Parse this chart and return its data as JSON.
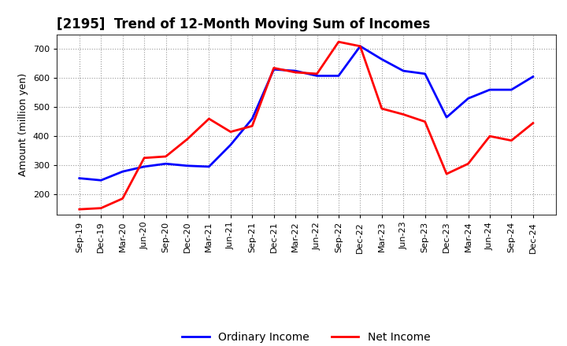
{
  "title": "[2195]  Trend of 12-Month Moving Sum of Incomes",
  "ylabel": "Amount (million yen)",
  "x_labels": [
    "Sep-19",
    "Dec-19",
    "Mar-20",
    "Jun-20",
    "Sep-20",
    "Dec-20",
    "Mar-21",
    "Jun-21",
    "Sep-21",
    "Dec-21",
    "Mar-22",
    "Jun-22",
    "Sep-22",
    "Dec-22",
    "Mar-23",
    "Jun-23",
    "Sep-23",
    "Dec-23",
    "Mar-24",
    "Jun-24",
    "Sep-24",
    "Dec-24"
  ],
  "ordinary_income": [
    255,
    248,
    278,
    295,
    305,
    298,
    295,
    370,
    460,
    630,
    625,
    608,
    608,
    710,
    665,
    625,
    615,
    465,
    530,
    560,
    560,
    605
  ],
  "net_income": [
    148,
    152,
    185,
    325,
    330,
    390,
    460,
    415,
    435,
    635,
    620,
    615,
    725,
    710,
    495,
    475,
    450,
    270,
    305,
    400,
    385,
    445
  ],
  "ordinary_color": "#0000ff",
  "net_color": "#ff0000",
  "ylim": [
    130,
    750
  ],
  "yticks": [
    200,
    300,
    400,
    500,
    600,
    700
  ],
  "background_color": "#ffffff",
  "grid_color": "#999999",
  "title_fontsize": 12,
  "tick_fontsize": 8,
  "ylabel_fontsize": 9,
  "legend_labels": [
    "Ordinary Income",
    "Net Income"
  ],
  "legend_fontsize": 10
}
